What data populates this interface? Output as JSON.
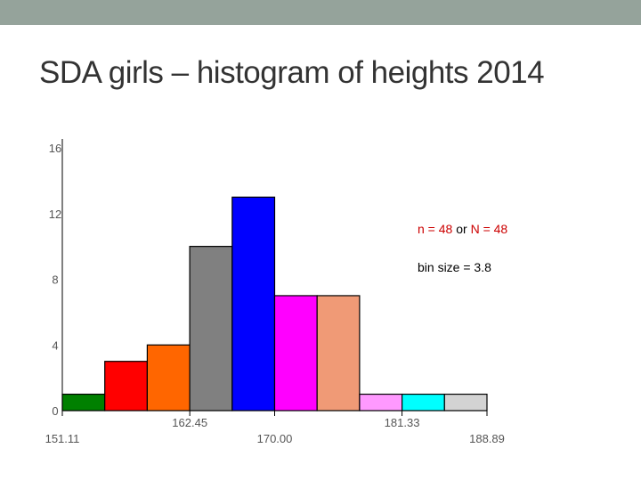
{
  "slide": {
    "title": "SDA girls – histogram of heights 2014"
  },
  "annotations": {
    "n_label": "n = 48",
    "or_label": "or",
    "N_label": "N = 48",
    "bin_label": "bin size = 3.8"
  },
  "chart_data": {
    "type": "bar",
    "title": "",
    "xlabel": "",
    "ylabel": "",
    "ylim": [
      0,
      16
    ],
    "xlim": [
      151.11,
      188.89
    ],
    "yticks": [
      0,
      4,
      8,
      12,
      16
    ],
    "xtick_labels": [
      "151.11",
      "162.45",
      "170.00",
      "181.33",
      "188.89"
    ],
    "grid": false,
    "categories": [
      "151.11–154.89",
      "154.89–158.67",
      "158.67–162.45",
      "162.45–166.22",
      "166.22–170.00",
      "170.00–173.78",
      "173.78–177.56",
      "177.56–181.33",
      "181.33–185.11",
      "185.11–188.89"
    ],
    "values": [
      1,
      3,
      4,
      10,
      13,
      7,
      7,
      1,
      1,
      1
    ],
    "colors": [
      "#008000",
      "#ff0000",
      "#ff6600",
      "#808080",
      "#0000ff",
      "#ff00ff",
      "#f09a76",
      "#ff99ff",
      "#00ffff",
      "#d3d3d3"
    ]
  }
}
